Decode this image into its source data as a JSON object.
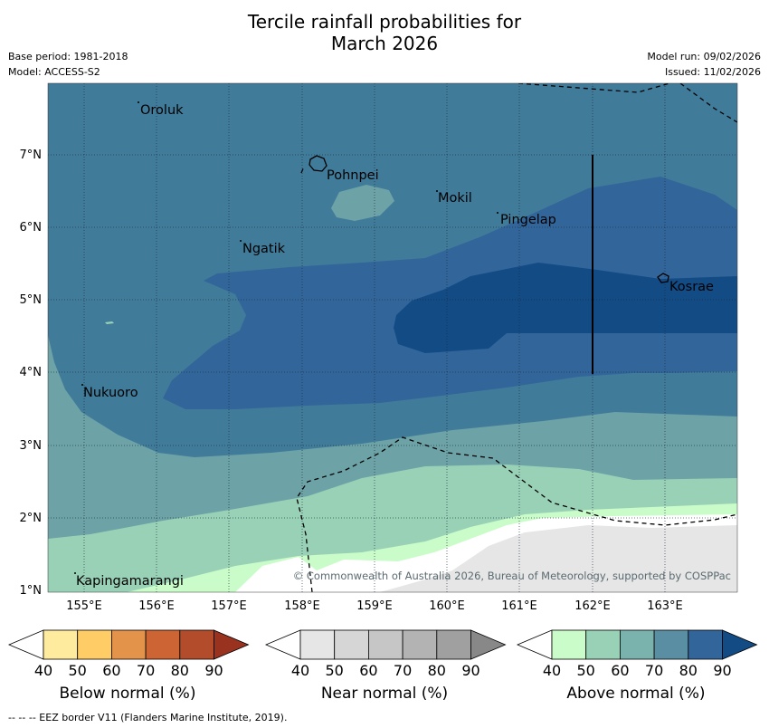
{
  "title_line1": "Tercile rainfall probabilities for",
  "title_line2": "March 2026",
  "base_period": "Base period: 1981-2018",
  "model": "Model: ACCESS-S2",
  "model_run": "Model run: 09/02/2026",
  "issued": "Issued: 11/02/2026",
  "copyright": "© Commonwealth of Australia 2026, Bureau of Meteorology, supported by COSPPac",
  "eez_note": "--  --  -- EEZ border V11 (Flanders Marine Institute, 2019).",
  "lat_labels": [
    "7°N",
    "6°N",
    "5°N",
    "4°N",
    "3°N",
    "2°N",
    "1°N"
  ],
  "lon_labels": [
    "155°E",
    "156°E",
    "157°E",
    "158°E",
    "159°E",
    "160°E",
    "161°E",
    "162°E",
    "163°E"
  ],
  "places": {
    "oroluk": "Oroluk",
    "pohnpei": "Pohnpei",
    "mokil": "Mokil",
    "pingelap": "Pingelap",
    "ngatik": "Ngatik",
    "kosrae": "Kosrae",
    "nukuoro": "Nukuoro",
    "kapingamarangi": "Kapingamarangi"
  },
  "colorbars": {
    "below": {
      "label": "Below normal (%)",
      "ticks": [
        "40",
        "50",
        "60",
        "70",
        "80",
        "90"
      ],
      "colors": [
        "#ffffff",
        "#ffeb9e",
        "#ffcc66",
        "#e3944a",
        "#cc6433",
        "#b24c2a",
        "#993320"
      ]
    },
    "near": {
      "label": "Near normal (%)",
      "ticks": [
        "40",
        "50",
        "60",
        "70",
        "80",
        "90"
      ],
      "colors": [
        "#ffffff",
        "#e6e6e6",
        "#d6d6d6",
        "#c6c6c6",
        "#b3b3b3",
        "#a0a0a0",
        "#888888"
      ]
    },
    "above": {
      "label": "Above normal (%)",
      "ticks": [
        "40",
        "50",
        "60",
        "70",
        "80",
        "90"
      ],
      "colors": [
        "#ffffff",
        "#c9fcc9",
        "#99d1b7",
        "#7ab3ad",
        "#5a8fa3",
        "#32669a",
        "#134b85"
      ]
    }
  },
  "fill_colors": {
    "above_40": "#c9fcc9",
    "above_50": "#99d1b7",
    "above_60": "#6da3a6",
    "above_70": "#417b9a",
    "above_80": "#32669a",
    "above_90": "#134b85",
    "near_40": "#e6e6e6"
  }
}
